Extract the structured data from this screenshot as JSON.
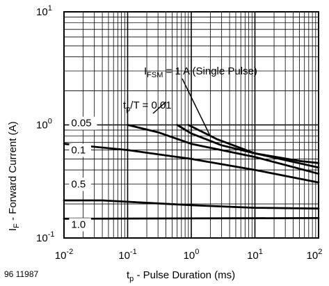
{
  "figure_id": "96 11987",
  "chart_data": {
    "type": "line",
    "xscale": "log",
    "yscale": "log",
    "xlim": [
      0.01,
      100
    ],
    "ylim": [
      0.1,
      10
    ],
    "grid": true,
    "xlabel": {
      "main": "t",
      "sub": "p",
      "rest": " - Pulse Duration (ms)"
    },
    "ylabel": {
      "main": "I",
      "sub": "F",
      "rest": " - Forward Current (A)"
    },
    "x_ticks": [
      {
        "value": 0.01,
        "base": "10",
        "exp": "-2"
      },
      {
        "value": 0.1,
        "base": "10",
        "exp": "-1"
      },
      {
        "value": 1,
        "base": "10",
        "exp": "0"
      },
      {
        "value": 10,
        "base": "10",
        "exp": "1"
      },
      {
        "value": 100,
        "base": "10",
        "exp": "2"
      }
    ],
    "y_ticks": [
      {
        "value": 10,
        "base": "10",
        "exp": "1"
      },
      {
        "value": 1,
        "base": "10",
        "exp": "0"
      },
      {
        "value": 0.1,
        "base": "10",
        "exp": "-1"
      }
    ],
    "annotations": [
      {
        "main": "I",
        "sub": "FSM",
        "rest": " = 1 A (Single Pulse)"
      },
      {
        "main": "t",
        "sub": "p",
        "rest": "/T = 0.01"
      }
    ],
    "series": [
      {
        "name": "1 A (Single Pulse)",
        "x": [
          0.9,
          2.5,
          10,
          50,
          100
        ],
        "y": [
          1.0,
          0.75,
          0.56,
          0.48,
          0.46
        ]
      },
      {
        "name": "0.01",
        "x": [
          0.6,
          1.0,
          3,
          10,
          100
        ],
        "y": [
          1.0,
          0.84,
          0.66,
          0.56,
          0.42
        ]
      },
      {
        "name": "0.05",
        "x": [
          0.1,
          0.3,
          1,
          10,
          100
        ],
        "y": [
          1.0,
          0.86,
          0.68,
          0.52,
          0.37
        ]
      },
      {
        "name": "0.1",
        "x": [
          0.01,
          0.1,
          1,
          10,
          100
        ],
        "y": [
          0.68,
          0.6,
          0.5,
          0.4,
          0.31
        ]
      },
      {
        "name": "0.5",
        "x": [
          0.01,
          0.04,
          1,
          10,
          100
        ],
        "y": [
          0.215,
          0.215,
          0.195,
          0.185,
          0.182
        ]
      },
      {
        "name": "1.0",
        "x": [
          0.01,
          100
        ],
        "y": [
          0.148,
          0.15
        ]
      }
    ],
    "curve_labels": [
      {
        "text": "0.05",
        "x": 0.013,
        "y": 0.97
      },
      {
        "text": "0.1",
        "x": 0.013,
        "y": 0.56
      },
      {
        "text": "0.5",
        "x": 0.013,
        "y": 0.28
      },
      {
        "text": "1.0",
        "x": 0.013,
        "y": 0.123
      }
    ]
  }
}
